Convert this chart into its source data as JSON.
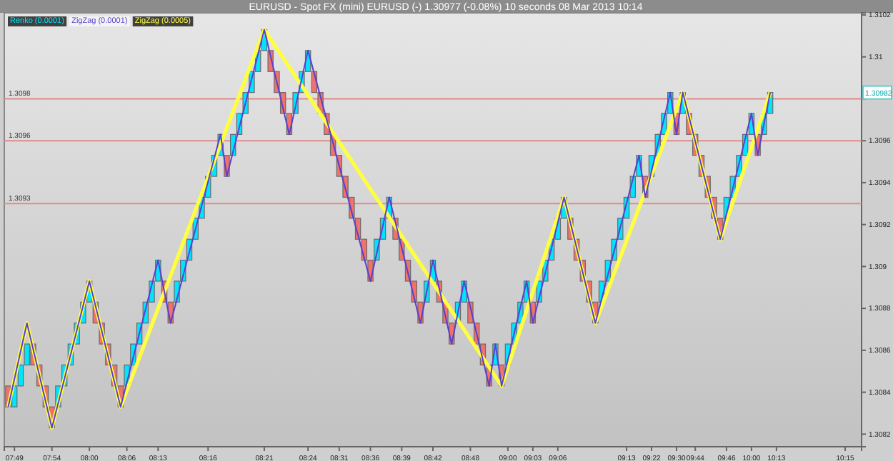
{
  "chart_data": {
    "type": "candlestick",
    "title": "EURUSD - Spot FX (mini) EURUSD (-)    1.30977 (-0.08%)    10 seconds   08 Mar 2013 10:14",
    "categories": [
      null,
      "07:49",
      null,
      null,
      null,
      null,
      null,
      "07:54",
      null,
      null,
      null,
      null,
      null,
      "08:00",
      null,
      null,
      null,
      null,
      null,
      "08:06",
      null,
      null,
      null,
      null,
      "08:13",
      null,
      null,
      null,
      null,
      null,
      null,
      null,
      "08:16",
      null,
      null,
      null,
      null,
      null,
      null,
      null,
      null,
      "08:21",
      null,
      null,
      null,
      null,
      null,
      null,
      "08:24",
      null,
      null,
      null,
      null,
      "08:31",
      null,
      null,
      null,
      null,
      "08:36",
      null,
      null,
      null,
      null,
      "08:39",
      null,
      null,
      null,
      null,
      "08:42",
      null,
      null,
      null,
      null,
      null,
      "08:48",
      null,
      null,
      null,
      null,
      null,
      "09:00",
      null,
      null,
      null,
      "09:03",
      null,
      null,
      null,
      "09:06",
      null,
      null,
      null,
      null,
      null,
      null,
      null,
      null,
      null,
      null,
      "09:13",
      null,
      null,
      null,
      "09:22",
      null,
      null,
      null,
      "09:30",
      null,
      null,
      "09:44",
      null,
      null,
      null,
      null,
      "09:46",
      null,
      null,
      null,
      "10:00",
      null,
      null,
      null,
      "10:13",
      null,
      null,
      null,
      null,
      null,
      null,
      null,
      null,
      null,
      null,
      "10:15",
      null,
      null
    ],
    "ylim": [
      1.30814,
      1.31021
    ],
    "yticks": [
      {
        "value": 1.3082,
        "label": "1.3082"
      },
      {
        "value": 1.3084,
        "label": "1.3084"
      },
      {
        "value": 1.3086,
        "label": "1.3086"
      },
      {
        "value": 1.3088,
        "label": "1.3088"
      },
      {
        "value": 1.309,
        "label": "1.309"
      },
      {
        "value": 1.3092,
        "label": "1.3092"
      },
      {
        "value": 1.3094,
        "label": "1.3094"
      },
      {
        "value": 1.3096,
        "label": "1.3096"
      },
      {
        "value": 1.3098,
        "label": null
      },
      {
        "value": 1.31,
        "label": "1.31"
      },
      {
        "value": 1.3102,
        "label": "1.3102"
      }
    ],
    "legend": "top left",
    "grid": false,
    "marker": "none",
    "line_style": "solid",
    "ref_lines": [
      {
        "axis": "y",
        "value": 1.3098,
        "label": "1.3098",
        "color": "#e08c8c"
      },
      {
        "axis": "y",
        "value": 1.3096,
        "label": "1.3096",
        "color": "#e08c8c"
      },
      {
        "axis": "y",
        "value": 1.3093,
        "label": "1.3093",
        "color": "#e08c8c"
      }
    ],
    "annotations": [
      "1.30982"
    ],
    "series": [
      {
        "name": "Renko (0.0001)",
        "color": "#00e5ff",
        "colors": [
          "#f2726a",
          "#00e5ff",
          "#00e5ff",
          "#00e5ff",
          "#f2726a",
          "#f2726a",
          "#f2726a",
          "#f2726a",
          "#00e5ff",
          "#00e5ff",
          "#00e5ff",
          "#00e5ff",
          "#00e5ff",
          "#00e5ff",
          "#f2726a",
          "#f2726a",
          "#f2726a",
          "#f2726a",
          "#f2726a",
          "#00e5ff",
          "#00e5ff",
          "#00e5ff",
          "#00e5ff",
          "#00e5ff",
          "#00e5ff",
          "#f2726a",
          "#f2726a",
          "#00e5ff",
          "#00e5ff",
          "#00e5ff",
          "#00e5ff",
          "#00e5ff",
          "#00e5ff",
          "#00e5ff",
          "#00e5ff",
          "#f2726a",
          "#00e5ff",
          "#00e5ff",
          "#00e5ff",
          "#00e5ff",
          "#00e5ff",
          "#00e5ff",
          "#f2726a",
          "#f2726a",
          "#f2726a",
          "#f2726a",
          "#00e5ff",
          "#00e5ff",
          "#00e5ff",
          "#f2726a",
          "#f2726a",
          "#f2726a",
          "#f2726a",
          "#f2726a",
          "#f2726a",
          "#f2726a",
          "#f2726a",
          "#f2726a",
          "#f2726a",
          "#00e5ff",
          "#00e5ff",
          "#00e5ff",
          "#f2726a",
          "#f2726a",
          "#f2726a",
          "#f2726a",
          "#f2726a",
          "#00e5ff",
          "#00e5ff",
          "#f2726a",
          "#f2726a",
          "#f2726a",
          "#00e5ff",
          "#00e5ff",
          "#f2726a",
          "#f2726a",
          "#f2726a",
          "#f2726a",
          "#00e5ff",
          "#f2726a",
          "#00e5ff",
          "#00e5ff",
          "#00e5ff",
          "#00e5ff",
          "#f2726a",
          "#00e5ff",
          "#00e5ff",
          "#00e5ff",
          "#00e5ff",
          "#00e5ff",
          "#f2726a",
          "#f2726a",
          "#f2726a",
          "#f2726a",
          "#f2726a",
          "#00e5ff",
          "#00e5ff",
          "#00e5ff",
          "#00e5ff",
          "#00e5ff",
          "#00e5ff",
          "#00e5ff",
          "#f2726a",
          "#00e5ff",
          "#00e5ff",
          "#00e5ff",
          "#00e5ff",
          "#f2726a",
          "#00e5ff",
          "#f2726a",
          "#f2726a",
          "#f2726a",
          "#f2726a",
          "#f2726a",
          "#f2726a",
          "#00e5ff",
          "#00e5ff",
          "#00e5ff",
          "#00e5ff",
          "#00e5ff",
          "#f2726a",
          "#00e5ff",
          "#00e5ff",
          null,
          null,
          null,
          null,
          null,
          null,
          null,
          null,
          null,
          null,
          null,
          null,
          null,
          null
        ],
        "ohlc": [
          [
            1.30843,
            1.30843,
            1.30833,
            1.30833
          ],
          [
            1.30833,
            1.30843,
            1.30833,
            1.30843
          ],
          [
            1.30843,
            1.30853,
            1.30843,
            1.30853
          ],
          [
            1.30853,
            1.30863,
            1.30853,
            1.30863
          ],
          [
            1.30863,
            1.30863,
            1.30853,
            1.30853
          ],
          [
            1.30853,
            1.30853,
            1.30843,
            1.30843
          ],
          [
            1.30843,
            1.30843,
            1.30833,
            1.30833
          ],
          [
            1.30833,
            1.30833,
            1.30823,
            1.30823
          ],
          [
            1.30833,
            1.30843,
            1.30833,
            1.30843
          ],
          [
            1.30843,
            1.30853,
            1.30843,
            1.30853
          ],
          [
            1.30853,
            1.30863,
            1.30853,
            1.30863
          ],
          [
            1.30863,
            1.30873,
            1.30863,
            1.30873
          ],
          [
            1.30873,
            1.30883,
            1.30873,
            1.30883
          ],
          [
            1.30883,
            1.30893,
            1.30883,
            1.30893
          ],
          [
            1.30883,
            1.30883,
            1.30873,
            1.30873
          ],
          [
            1.30873,
            1.30873,
            1.30863,
            1.30863
          ],
          [
            1.30863,
            1.30863,
            1.30853,
            1.30853
          ],
          [
            1.30853,
            1.30853,
            1.30843,
            1.30843
          ],
          [
            1.30843,
            1.30843,
            1.30833,
            1.30833
          ],
          [
            1.30843,
            1.30853,
            1.30843,
            1.30853
          ],
          [
            1.30853,
            1.30863,
            1.30853,
            1.30863
          ],
          [
            1.30863,
            1.30873,
            1.30863,
            1.30873
          ],
          [
            1.30873,
            1.30883,
            1.30873,
            1.30883
          ],
          [
            1.30883,
            1.30893,
            1.30883,
            1.30893
          ],
          [
            1.30893,
            1.30903,
            1.30893,
            1.30903
          ],
          [
            1.30893,
            1.30893,
            1.30883,
            1.30883
          ],
          [
            1.30883,
            1.30883,
            1.30873,
            1.30873
          ],
          [
            1.30883,
            1.30893,
            1.30883,
            1.30893
          ],
          [
            1.30893,
            1.30903,
            1.30893,
            1.30903
          ],
          [
            1.30903,
            1.30913,
            1.30903,
            1.30913
          ],
          [
            1.30913,
            1.30923,
            1.30913,
            1.30923
          ],
          [
            1.30923,
            1.30933,
            1.30923,
            1.30933
          ],
          [
            1.30933,
            1.30943,
            1.30933,
            1.30943
          ],
          [
            1.30943,
            1.30953,
            1.30943,
            1.30953
          ],
          [
            1.30953,
            1.30963,
            1.30953,
            1.30963
          ],
          [
            1.30953,
            1.30953,
            1.30943,
            1.30943
          ],
          [
            1.30953,
            1.30963,
            1.30953,
            1.30963
          ],
          [
            1.30963,
            1.30973,
            1.30963,
            1.30973
          ],
          [
            1.30973,
            1.30983,
            1.30973,
            1.30983
          ],
          [
            1.30983,
            1.30993,
            1.30983,
            1.30993
          ],
          [
            1.30993,
            1.31003,
            1.30993,
            1.31003
          ],
          [
            1.31003,
            1.31013,
            1.31003,
            1.31013
          ],
          [
            1.31003,
            1.31003,
            1.30993,
            1.30993
          ],
          [
            1.30993,
            1.30993,
            1.30983,
            1.30983
          ],
          [
            1.30983,
            1.30983,
            1.30973,
            1.30973
          ],
          [
            1.30973,
            1.30973,
            1.30963,
            1.30963
          ],
          [
            1.30973,
            1.30983,
            1.30973,
            1.30983
          ],
          [
            1.30983,
            1.30993,
            1.30983,
            1.30993
          ],
          [
            1.30993,
            1.31003,
            1.30993,
            1.31003
          ],
          [
            1.30993,
            1.30993,
            1.30983,
            1.30983
          ],
          [
            1.30983,
            1.30983,
            1.30973,
            1.30973
          ],
          [
            1.30973,
            1.30973,
            1.30963,
            1.30963
          ],
          [
            1.30963,
            1.30963,
            1.30953,
            1.30953
          ],
          [
            1.30953,
            1.30953,
            1.30943,
            1.30943
          ],
          [
            1.30943,
            1.30943,
            1.30933,
            1.30933
          ],
          [
            1.30933,
            1.30933,
            1.30923,
            1.30923
          ],
          [
            1.30923,
            1.30923,
            1.30913,
            1.30913
          ],
          [
            1.30913,
            1.30913,
            1.30903,
            1.30903
          ],
          [
            1.30903,
            1.30903,
            1.30893,
            1.30893
          ],
          [
            1.30903,
            1.30913,
            1.30903,
            1.30913
          ],
          [
            1.30913,
            1.30923,
            1.30913,
            1.30923
          ],
          [
            1.30923,
            1.30933,
            1.30923,
            1.30933
          ],
          [
            1.30923,
            1.30923,
            1.30913,
            1.30913
          ],
          [
            1.30913,
            1.30913,
            1.30903,
            1.30903
          ],
          [
            1.30903,
            1.30903,
            1.30893,
            1.30893
          ],
          [
            1.30893,
            1.30893,
            1.30883,
            1.30883
          ],
          [
            1.30883,
            1.30883,
            1.30873,
            1.30873
          ],
          [
            1.30883,
            1.30893,
            1.30883,
            1.30893
          ],
          [
            1.30893,
            1.30903,
            1.30893,
            1.30903
          ],
          [
            1.30893,
            1.30893,
            1.30883,
            1.30883
          ],
          [
            1.30883,
            1.30883,
            1.30873,
            1.30873
          ],
          [
            1.30873,
            1.30873,
            1.30863,
            1.30863
          ],
          [
            1.30873,
            1.30883,
            1.30873,
            1.30883
          ],
          [
            1.30883,
            1.30893,
            1.30883,
            1.30893
          ],
          [
            1.30883,
            1.30883,
            1.30873,
            1.30873
          ],
          [
            1.30873,
            1.30873,
            1.30863,
            1.30863
          ],
          [
            1.30863,
            1.30863,
            1.30853,
            1.30853
          ],
          [
            1.30853,
            1.30853,
            1.30843,
            1.30843
          ],
          [
            1.30853,
            1.30863,
            1.30853,
            1.30863
          ],
          [
            1.30853,
            1.30853,
            1.30843,
            1.30843
          ],
          [
            1.30853,
            1.30863,
            1.30853,
            1.30863
          ],
          [
            1.30863,
            1.30873,
            1.30863,
            1.30873
          ],
          [
            1.30873,
            1.30883,
            1.30873,
            1.30883
          ],
          [
            1.30883,
            1.30893,
            1.30883,
            1.30893
          ],
          [
            1.30883,
            1.30883,
            1.30873,
            1.30873
          ],
          [
            1.30883,
            1.30893,
            1.30883,
            1.30893
          ],
          [
            1.30893,
            1.30903,
            1.30893,
            1.30903
          ],
          [
            1.30903,
            1.30913,
            1.30903,
            1.30913
          ],
          [
            1.30913,
            1.30923,
            1.30913,
            1.30923
          ],
          [
            1.30923,
            1.30933,
            1.30923,
            1.30933
          ],
          [
            1.30923,
            1.30923,
            1.30913,
            1.30913
          ],
          [
            1.30913,
            1.30913,
            1.30903,
            1.30903
          ],
          [
            1.30903,
            1.30903,
            1.30893,
            1.30893
          ],
          [
            1.30893,
            1.30893,
            1.30883,
            1.30883
          ],
          [
            1.30883,
            1.30883,
            1.30873,
            1.30873
          ],
          [
            1.30883,
            1.30893,
            1.30883,
            1.30893
          ],
          [
            1.30893,
            1.30903,
            1.30893,
            1.30903
          ],
          [
            1.30903,
            1.30913,
            1.30903,
            1.30913
          ],
          [
            1.30913,
            1.30923,
            1.30913,
            1.30923
          ],
          [
            1.30923,
            1.30933,
            1.30923,
            1.30933
          ],
          [
            1.30933,
            1.30943,
            1.30933,
            1.30943
          ],
          [
            1.30943,
            1.30953,
            1.30943,
            1.30953
          ],
          [
            1.30943,
            1.30943,
            1.30933,
            1.30933
          ],
          [
            1.30943,
            1.30953,
            1.30943,
            1.30953
          ],
          [
            1.30953,
            1.30963,
            1.30953,
            1.30963
          ],
          [
            1.30963,
            1.30973,
            1.30963,
            1.30973
          ],
          [
            1.30973,
            1.30983,
            1.30973,
            1.30983
          ],
          [
            1.30973,
            1.30973,
            1.30963,
            1.30963
          ],
          [
            1.30973,
            1.30983,
            1.30973,
            1.30983
          ],
          [
            1.30973,
            1.30973,
            1.30963,
            1.30963
          ],
          [
            1.30963,
            1.30963,
            1.30953,
            1.30953
          ],
          [
            1.30953,
            1.30953,
            1.30943,
            1.30943
          ],
          [
            1.30943,
            1.30943,
            1.30933,
            1.30933
          ],
          [
            1.30933,
            1.30933,
            1.30923,
            1.30923
          ],
          [
            1.30923,
            1.30923,
            1.30913,
            1.30913
          ],
          [
            1.30923,
            1.30933,
            1.30923,
            1.30933
          ],
          [
            1.30933,
            1.30943,
            1.30933,
            1.30943
          ],
          [
            1.30943,
            1.30953,
            1.30943,
            1.30953
          ],
          [
            1.30953,
            1.30963,
            1.30953,
            1.30963
          ],
          [
            1.30963,
            1.30973,
            1.30963,
            1.30973
          ],
          [
            1.30963,
            1.30963,
            1.30953,
            1.30953
          ],
          [
            1.30963,
            1.30973,
            1.30963,
            1.30973
          ],
          [
            1.30973,
            1.30983,
            1.30973,
            1.30983
          ],
          null,
          null,
          null,
          null,
          null,
          null,
          null,
          null,
          null,
          null,
          null,
          null,
          null,
          null
        ]
      },
      {
        "type": "line",
        "name": "ZigZag (0.0001)",
        "color": "#5a3fd0",
        "values": [
          1.30833,
          null,
          null,
          1.30873,
          null,
          null,
          null,
          1.30823,
          null,
          null,
          null,
          null,
          null,
          1.30893,
          null,
          null,
          null,
          null,
          1.30833,
          null,
          null,
          null,
          null,
          null,
          1.30903,
          null,
          1.30873,
          null,
          null,
          null,
          null,
          null,
          null,
          null,
          1.30963,
          1.30943,
          null,
          null,
          null,
          null,
          null,
          1.31013,
          null,
          null,
          null,
          1.30963,
          null,
          null,
          1.31003,
          null,
          null,
          null,
          null,
          null,
          null,
          null,
          null,
          null,
          1.30893,
          null,
          null,
          1.30933,
          null,
          null,
          null,
          null,
          1.30873,
          null,
          1.30903,
          null,
          null,
          1.30863,
          null,
          1.30893,
          null,
          null,
          null,
          1.30843,
          1.30863,
          1.30843,
          null,
          null,
          null,
          1.30893,
          1.30873,
          null,
          null,
          null,
          null,
          1.30933,
          null,
          null,
          null,
          null,
          1.30873,
          null,
          null,
          null,
          null,
          null,
          null,
          1.30953,
          1.30933,
          null,
          null,
          null,
          1.30983,
          1.30963,
          1.30983,
          null,
          null,
          null,
          null,
          null,
          1.30913,
          null,
          null,
          null,
          null,
          1.30973,
          1.30953,
          null,
          1.30983,
          null,
          null,
          null,
          null,
          null,
          null,
          null,
          null,
          null,
          null,
          null,
          null,
          null,
          null
        ]
      },
      {
        "type": "line",
        "name": "ZigZag (0.0005)",
        "color": "#ffff40",
        "values": [
          1.30833,
          null,
          null,
          1.30873,
          null,
          null,
          null,
          1.30823,
          null,
          null,
          null,
          null,
          null,
          1.30893,
          null,
          null,
          null,
          null,
          1.30833,
          null,
          null,
          null,
          null,
          null,
          null,
          null,
          null,
          null,
          null,
          null,
          null,
          null,
          null,
          null,
          null,
          null,
          null,
          null,
          null,
          null,
          null,
          1.31013,
          null,
          null,
          null,
          null,
          null,
          null,
          null,
          null,
          null,
          null,
          null,
          null,
          null,
          null,
          null,
          null,
          null,
          null,
          null,
          null,
          null,
          null,
          null,
          null,
          null,
          null,
          null,
          null,
          null,
          null,
          null,
          null,
          null,
          null,
          null,
          null,
          null,
          1.30843,
          null,
          null,
          null,
          null,
          null,
          null,
          null,
          null,
          null,
          1.30933,
          null,
          null,
          null,
          null,
          1.30873,
          null,
          null,
          null,
          null,
          null,
          null,
          null,
          null,
          null,
          null,
          null,
          null,
          null,
          1.30983,
          null,
          null,
          null,
          null,
          null,
          1.30913,
          null,
          null,
          null,
          null,
          null,
          null,
          null,
          1.30983,
          null,
          null,
          null,
          null,
          null,
          null,
          null,
          null,
          null,
          null,
          null,
          null,
          null,
          null
        ]
      }
    ]
  }
}
